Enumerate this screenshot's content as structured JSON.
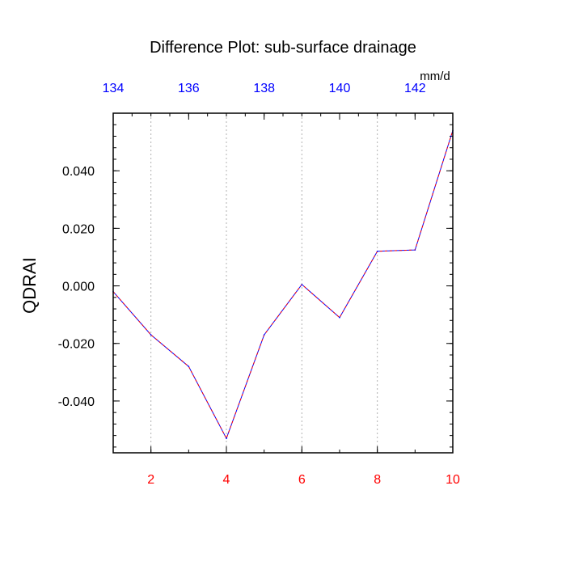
{
  "chart_data": {
    "type": "line",
    "title": "Difference Plot: sub-surface drainage",
    "ylabel": "QDRAI",
    "units_label": "mm/d",
    "x": [
      1,
      2,
      3,
      4,
      5,
      6,
      7,
      8,
      9,
      10
    ],
    "values": [
      -0.002,
      -0.017,
      -0.028,
      -0.053,
      -0.017,
      0.0005,
      -0.011,
      0.012,
      0.0125,
      0.054
    ],
    "xlim": [
      1,
      10
    ],
    "ylim": [
      -0.058,
      0.06
    ],
    "bottom_ticks": [
      2,
      4,
      6,
      8,
      10
    ],
    "top_axis": {
      "range": [
        134,
        143
      ],
      "ticks": [
        134,
        136,
        138,
        140,
        142
      ]
    },
    "y_ticks": [
      {
        "value": 0.04,
        "label": "0.040"
      },
      {
        "value": 0.02,
        "label": "0.020"
      },
      {
        "value": 0.0,
        "label": "0.000"
      },
      {
        "value": -0.02,
        "label": "-0.020"
      },
      {
        "value": -0.04,
        "label": "-0.040"
      }
    ],
    "grid": "vertical dotted at bottom ticks",
    "colors": {
      "bottom_tick_labels": "#ff0000",
      "top_tick_labels": "#0000ff",
      "line_primary": "#0000ff",
      "line_dash": "#ff0000",
      "grid": "#b0b0b0",
      "frame": "#000000"
    }
  }
}
